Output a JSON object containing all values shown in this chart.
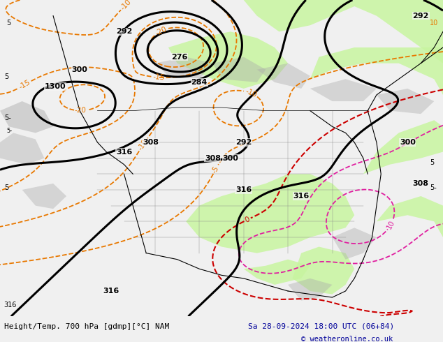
{
  "title_left": "Height/Temp. 700 hPa [gdmp][°C] NAM",
  "title_right": "Sa 28-09-2024 18:00 UTC (06+84)",
  "copyright": "© weatheronline.co.uk",
  "bg_color": "#f0f0f0",
  "map_bg": "#f5f5f5",
  "green_fill": "#c8f5a0",
  "gray_fill": "#aaaaaa",
  "figsize": [
    6.34,
    4.9
  ],
  "dpi": 100,
  "bottom_bar_color": "#e8e8e8",
  "title_color": "#000099",
  "copyright_color": "#000099",
  "black_lw": 2.2,
  "orange_lw": 1.3,
  "magenta_lw": 1.3,
  "red_lw": 1.5
}
